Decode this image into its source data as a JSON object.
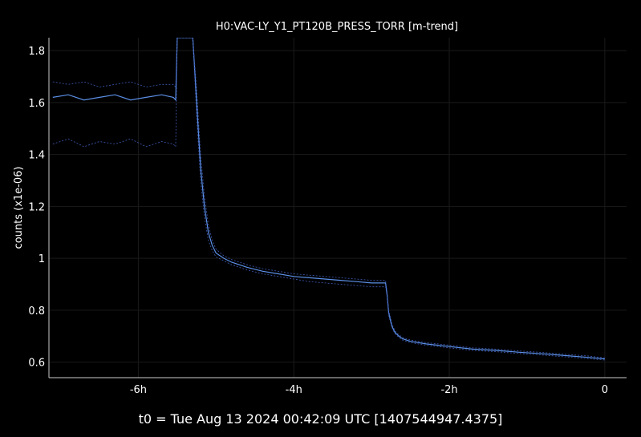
{
  "chart_data": {
    "type": "line",
    "title": "H0:VAC-LY_Y1_PT120B_PRESS_TORR [m-trend]",
    "ylabel": "counts (x1e-06)",
    "xlabel": "",
    "footer": "t0 = Tue Aug 13 2024 00:42:09 UTC [1407544947.4375]",
    "xlim": [
      -7.15,
      0.28
    ],
    "ylim": [
      0.54,
      1.85
    ],
    "x_ticks": [
      {
        "value": -6,
        "label": "-6h"
      },
      {
        "value": -4,
        "label": "-4h"
      },
      {
        "value": -2,
        "label": "-2h"
      },
      {
        "value": 0,
        "label": "0"
      }
    ],
    "y_ticks": [
      {
        "value": 0.6,
        "label": "0.6"
      },
      {
        "value": 0.8,
        "label": "0.8"
      },
      {
        "value": 1.0,
        "label": "1"
      },
      {
        "value": 1.2,
        "label": "1.2"
      },
      {
        "value": 1.4,
        "label": "1.4"
      },
      {
        "value": 1.6,
        "label": "1.6"
      },
      {
        "value": 1.8,
        "label": "1.8"
      }
    ],
    "grid": true,
    "colors": {
      "mean": "#5b8fe6",
      "envelope": "#3c5ab4",
      "axis": "#cccccc",
      "grid": "#1a1a1a"
    },
    "series": [
      {
        "role": "mean",
        "x": [
          -7.1,
          -6.9,
          -6.7,
          -6.5,
          -6.3,
          -6.1,
          -5.9,
          -5.7,
          -5.55,
          -5.52,
          -5.5,
          -5.4,
          -5.3,
          -5.25,
          -5.2,
          -5.15,
          -5.1,
          -5.05,
          -5.0,
          -4.9,
          -4.8,
          -4.6,
          -4.4,
          -4.2,
          -4.0,
          -3.8,
          -3.6,
          -3.4,
          -3.2,
          -3.0,
          -2.9,
          -2.82,
          -2.8,
          -2.78,
          -2.74,
          -2.7,
          -2.65,
          -2.6,
          -2.5,
          -2.3,
          -2.0,
          -1.7,
          -1.4,
          -1.1,
          -0.8,
          -0.5,
          -0.2,
          0.0
        ],
        "y": [
          1.62,
          1.63,
          1.61,
          1.62,
          1.63,
          1.61,
          1.62,
          1.63,
          1.62,
          1.61,
          1.85,
          1.85,
          1.85,
          1.6,
          1.35,
          1.2,
          1.1,
          1.05,
          1.02,
          1.0,
          0.985,
          0.965,
          0.95,
          0.94,
          0.93,
          0.925,
          0.92,
          0.915,
          0.91,
          0.905,
          0.905,
          0.905,
          0.86,
          0.79,
          0.74,
          0.715,
          0.7,
          0.69,
          0.68,
          0.67,
          0.66,
          0.65,
          0.645,
          0.638,
          0.632,
          0.625,
          0.618,
          0.612
        ]
      },
      {
        "role": "max",
        "x": [
          -7.1,
          -6.9,
          -6.7,
          -6.5,
          -6.3,
          -6.1,
          -5.9,
          -5.7,
          -5.55,
          -5.52,
          -5.5,
          -5.4,
          -5.3,
          -5.25,
          -5.2,
          -5.15,
          -5.1,
          -5.05,
          -5.0,
          -4.9,
          -4.8,
          -4.6,
          -4.4,
          -4.2,
          -4.0,
          -3.8,
          -3.6,
          -3.4,
          -3.2,
          -3.0,
          -2.9,
          -2.82,
          -2.8,
          -2.78,
          -2.74,
          -2.7,
          -2.65,
          -2.6,
          -2.5,
          -2.3,
          -2.0,
          -1.7,
          -1.4,
          -1.1,
          -0.8,
          -0.5,
          -0.2,
          0.0
        ],
        "y": [
          1.68,
          1.67,
          1.68,
          1.66,
          1.67,
          1.68,
          1.66,
          1.67,
          1.67,
          1.66,
          1.85,
          1.85,
          1.85,
          1.65,
          1.4,
          1.24,
          1.13,
          1.07,
          1.035,
          1.01,
          0.995,
          0.975,
          0.96,
          0.95,
          0.94,
          0.935,
          0.93,
          0.925,
          0.92,
          0.915,
          0.915,
          0.915,
          0.87,
          0.8,
          0.75,
          0.72,
          0.705,
          0.695,
          0.685,
          0.675,
          0.665,
          0.655,
          0.65,
          0.643,
          0.637,
          0.63,
          0.623,
          0.616
        ]
      },
      {
        "role": "min",
        "x": [
          -7.1,
          -6.9,
          -6.7,
          -6.5,
          -6.3,
          -6.1,
          -5.9,
          -5.7,
          -5.55,
          -5.52,
          -5.5,
          -5.4,
          -5.3,
          -5.25,
          -5.2,
          -5.15,
          -5.1,
          -5.05,
          -5.0,
          -4.9,
          -4.8,
          -4.6,
          -4.4,
          -4.2,
          -4.0,
          -3.8,
          -3.6,
          -3.4,
          -3.2,
          -3.0,
          -2.9,
          -2.82,
          -2.8,
          -2.78,
          -2.74,
          -2.7,
          -2.65,
          -2.6,
          -2.5,
          -2.3,
          -2.0,
          -1.7,
          -1.4,
          -1.1,
          -0.8,
          -0.5,
          -0.2,
          0.0
        ],
        "y": [
          1.44,
          1.46,
          1.43,
          1.45,
          1.44,
          1.46,
          1.43,
          1.45,
          1.44,
          1.43,
          1.85,
          1.85,
          1.85,
          1.55,
          1.3,
          1.16,
          1.07,
          1.03,
          1.005,
          0.99,
          0.975,
          0.955,
          0.94,
          0.93,
          0.92,
          0.91,
          0.905,
          0.9,
          0.895,
          0.89,
          0.89,
          0.89,
          0.85,
          0.78,
          0.735,
          0.71,
          0.695,
          0.685,
          0.675,
          0.665,
          0.655,
          0.645,
          0.64,
          0.633,
          0.627,
          0.62,
          0.613,
          0.608
        ]
      }
    ]
  }
}
